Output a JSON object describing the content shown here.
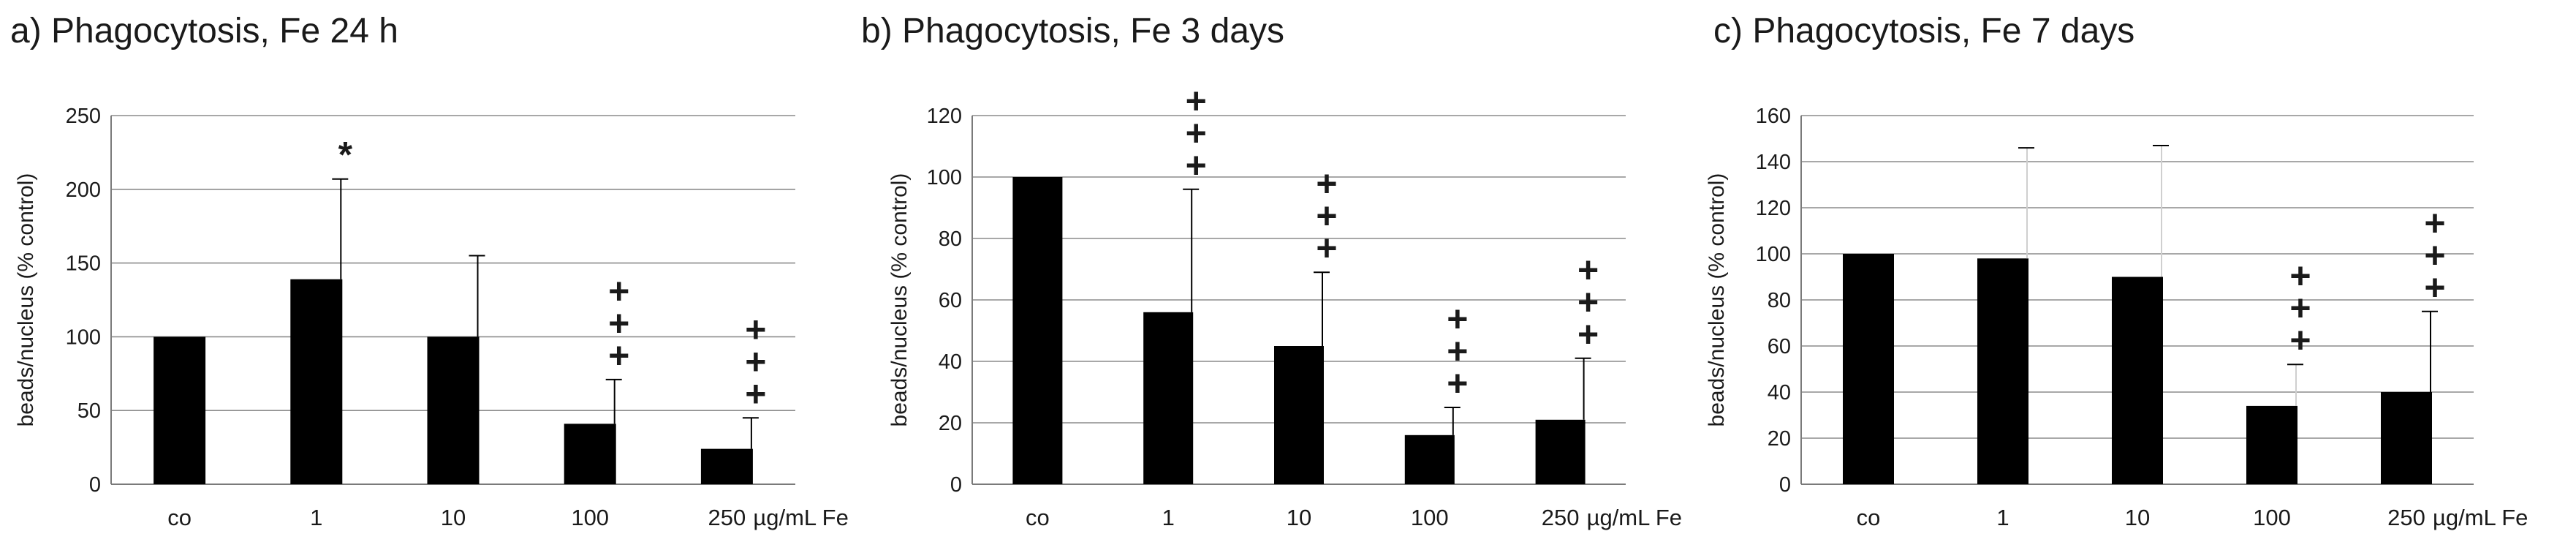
{
  "chart_data": [
    {
      "type": "bar",
      "title": "a) Phagocytosis, Fe 24 h",
      "ylabel": "beads/nucleus (% control)",
      "unit_label": "µg/mL Fe",
      "categories": [
        "co",
        "1",
        "10",
        "100",
        "250"
      ],
      "values": [
        100,
        139,
        100,
        41,
        24
      ],
      "errors": [
        0,
        68,
        55,
        30,
        21
      ],
      "markers": [
        "",
        "*",
        "",
        "+\n+\n+",
        "+\n+\n+"
      ],
      "ylim": [
        0,
        250
      ],
      "yticks": [
        0,
        50,
        100,
        150,
        200,
        250
      ],
      "grid": true
    },
    {
      "type": "bar",
      "title": "b) Phagocytosis, Fe 3 days",
      "ylabel": "beads/nucleus (% control)",
      "unit_label": "µg/mL Fe",
      "categories": [
        "co",
        "1",
        "10",
        "100",
        "250"
      ],
      "values": [
        100,
        56,
        45,
        16,
        21
      ],
      "errors": [
        0,
        40,
        24,
        9,
        20
      ],
      "markers": [
        "",
        "+\n+\n+",
        "+\n+\n+",
        "+\n+\n+",
        "+\n+\n+"
      ],
      "ylim": [
        0,
        120
      ],
      "yticks": [
        0,
        20,
        40,
        60,
        80,
        100,
        120
      ],
      "grid": true
    },
    {
      "type": "bar",
      "title": "c) Phagocytosis, Fe 7 days",
      "ylabel": "beads/nucleus (% control)",
      "unit_label": "µg/mL Fe",
      "categories": [
        "co",
        "1",
        "10",
        "100",
        "250"
      ],
      "values": [
        100,
        98,
        90,
        34,
        40
      ],
      "errors": [
        0,
        48,
        57,
        18,
        35
      ],
      "markers": [
        "",
        "",
        "",
        "+\n+\n+",
        "+\n+\n+"
      ],
      "ylim": [
        0,
        160
      ],
      "yticks": [
        0,
        20,
        40,
        60,
        80,
        100,
        120,
        140,
        160
      ],
      "grid": true
    }
  ]
}
